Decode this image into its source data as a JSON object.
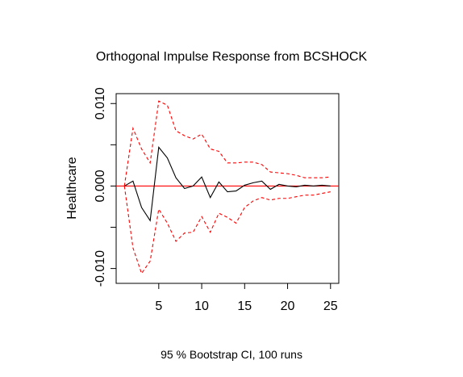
{
  "chart_data": {
    "type": "line",
    "title": "Orthogonal Impulse Response from BCSHOCK",
    "ylabel": "Healthcare",
    "caption": "95 % Bootstrap CI,  100 runs",
    "xlim": [
      0.04,
      25.96
    ],
    "ylim": [
      -0.0118,
      0.0112
    ],
    "x_ticks": [
      5,
      10,
      15,
      20,
      25
    ],
    "x_tick_labels": [
      "5",
      "10",
      "15",
      "20",
      "25"
    ],
    "y_ticks": [
      -0.01,
      -0.005,
      0.0,
      0.005,
      0.01
    ],
    "y_tick_labels": [
      "-0.010",
      "",
      "0.000",
      "",
      "0.010"
    ],
    "reference_line": {
      "y": 0,
      "color": "#ff0000"
    },
    "grid": false,
    "x": [
      1,
      2,
      3,
      4,
      5,
      6,
      7,
      8,
      9,
      10,
      11,
      12,
      13,
      14,
      15,
      16,
      17,
      18,
      19,
      20,
      21,
      22,
      23,
      24,
      25
    ],
    "series": [
      {
        "color": "#000000",
        "dash": "solid",
        "values": [
          0.0,
          0.0006,
          -0.0026,
          -0.0042,
          0.0047,
          0.0034,
          0.001,
          -0.0003,
          0.0,
          0.0011,
          -0.0014,
          0.0005,
          -0.0007,
          -0.0006,
          0.0001,
          0.0004,
          0.0006,
          -0.0004,
          0.0002,
          0.0,
          -0.0001,
          0.0001,
          0.0,
          0.0001,
          0.0
        ]
      },
      {
        "color": "#ff0000",
        "dash": "dashed",
        "values": [
          0.0,
          0.007,
          0.0045,
          0.0028,
          0.0103,
          0.0098,
          0.0067,
          0.0061,
          0.0057,
          0.0063,
          0.0045,
          0.0042,
          0.0028,
          0.0028,
          0.0029,
          0.0029,
          0.0026,
          0.0017,
          0.0016,
          0.0015,
          0.0013,
          0.001,
          0.001,
          0.001,
          0.0011
        ]
      },
      {
        "color": "#ff0000",
        "dash": "dashed",
        "values": [
          0.0,
          -0.0075,
          -0.0106,
          -0.0091,
          -0.0028,
          -0.0045,
          -0.0067,
          -0.0057,
          -0.0056,
          -0.0037,
          -0.0056,
          -0.0033,
          -0.0038,
          -0.0045,
          -0.0026,
          -0.0018,
          -0.0014,
          -0.0017,
          -0.0015,
          -0.0015,
          -0.0013,
          -0.0011,
          -0.0011,
          -0.0009,
          -0.0007
        ]
      }
    ]
  }
}
